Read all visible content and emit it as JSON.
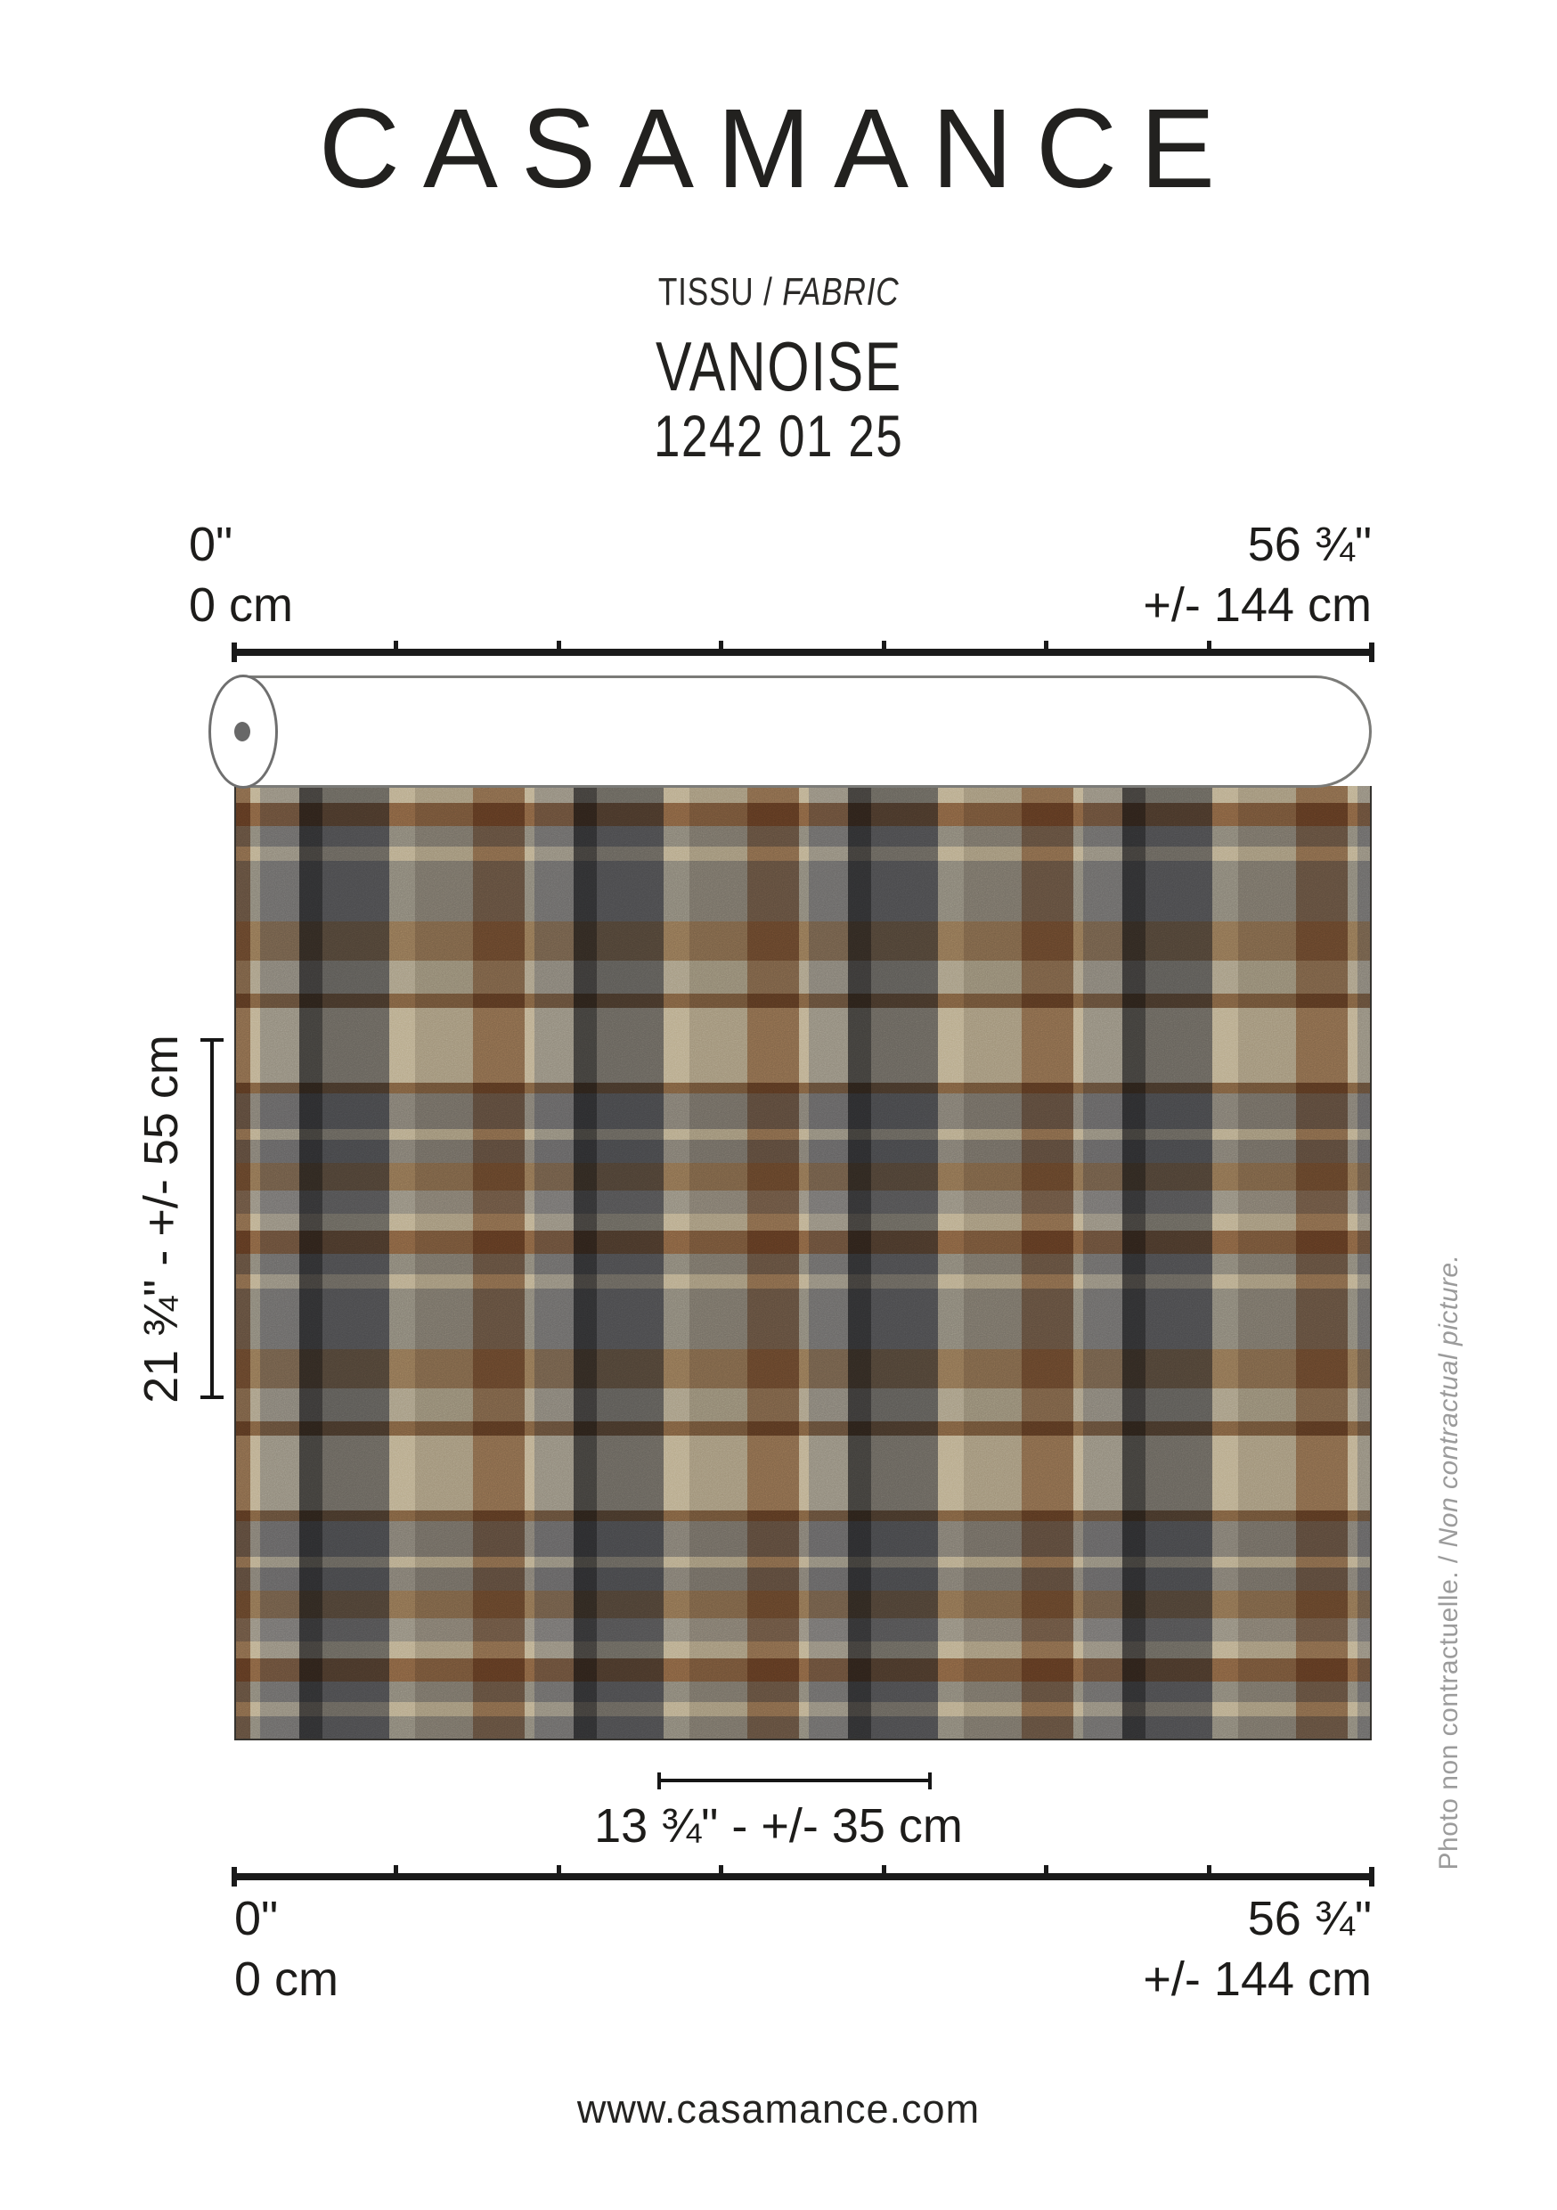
{
  "brand": {
    "logo": "CASAMANCE",
    "website": "www.casamance.com"
  },
  "product": {
    "category_fr": "TISSU",
    "category_separator": " / ",
    "category_en": "FABRIC",
    "name": "VANOISE",
    "reference": "1242 01 25"
  },
  "rulers": {
    "zero_in": "0\"",
    "zero_cm": "0 cm",
    "width_in": "56 ¾\"",
    "width_cm": "+/- 144 cm"
  },
  "measurements": {
    "vertical_repeat_label": "21 ¾\" - +/- 55 cm",
    "horizontal_repeat_label": "13 ¾\" - +/- 35 cm"
  },
  "disclaimer": {
    "fr": "Photo non contractuelle. / ",
    "en": "Non contractual picture."
  },
  "fabric": {
    "description": "plaid check wool fabric swatch on a white roll",
    "palette": {
      "charcoal": "#45464a",
      "dark_gray": "#63656a",
      "mid_gray": "#8b8d91",
      "light_gray": "#a9a9ab",
      "beige": "#b3aba1",
      "cream": "#d6d1c5",
      "rust_brown": "#8b6e54",
      "taupe": "#94836f"
    },
    "warp": [
      {
        "color": "#a8896f",
        "width": 16
      },
      {
        "color": "#f4eddd",
        "width": 11
      },
      {
        "color": "#bcbcbf",
        "width": 44
      },
      {
        "color": "#53545a",
        "width": 26
      },
      {
        "color": "#83858c",
        "width": 75
      },
      {
        "color": "#f0e9d9",
        "width": 29
      },
      {
        "color": "#cfc7ba",
        "width": 65
      },
      {
        "color": "#a8896f",
        "width": 42
      }
    ],
    "weft": [
      {
        "color": "#e8e2d3",
        "width": 19
      },
      {
        "color": "#a07b5e",
        "width": 26
      },
      {
        "color": "#a7a9ae",
        "width": 23
      },
      {
        "color": "#e5dfd0",
        "width": 16
      },
      {
        "color": "#a7a9ae",
        "width": 68
      },
      {
        "color": "#ad9379",
        "width": 44
      },
      {
        "color": "#cfccc4",
        "width": 37
      },
      {
        "color": "#997a5e",
        "width": 16
      },
      {
        "color": "#e7e1d2",
        "width": 84
      },
      {
        "color": "#997a5e",
        "width": 12
      },
      {
        "color": "#9c9ea5",
        "width": 40
      },
      {
        "color": "#e2dccd",
        "width": 12
      },
      {
        "color": "#9c9ea5",
        "width": 26
      },
      {
        "color": "#a98f75",
        "width": 31
      },
      {
        "color": "#b6b7bb",
        "width": 26
      }
    ]
  }
}
